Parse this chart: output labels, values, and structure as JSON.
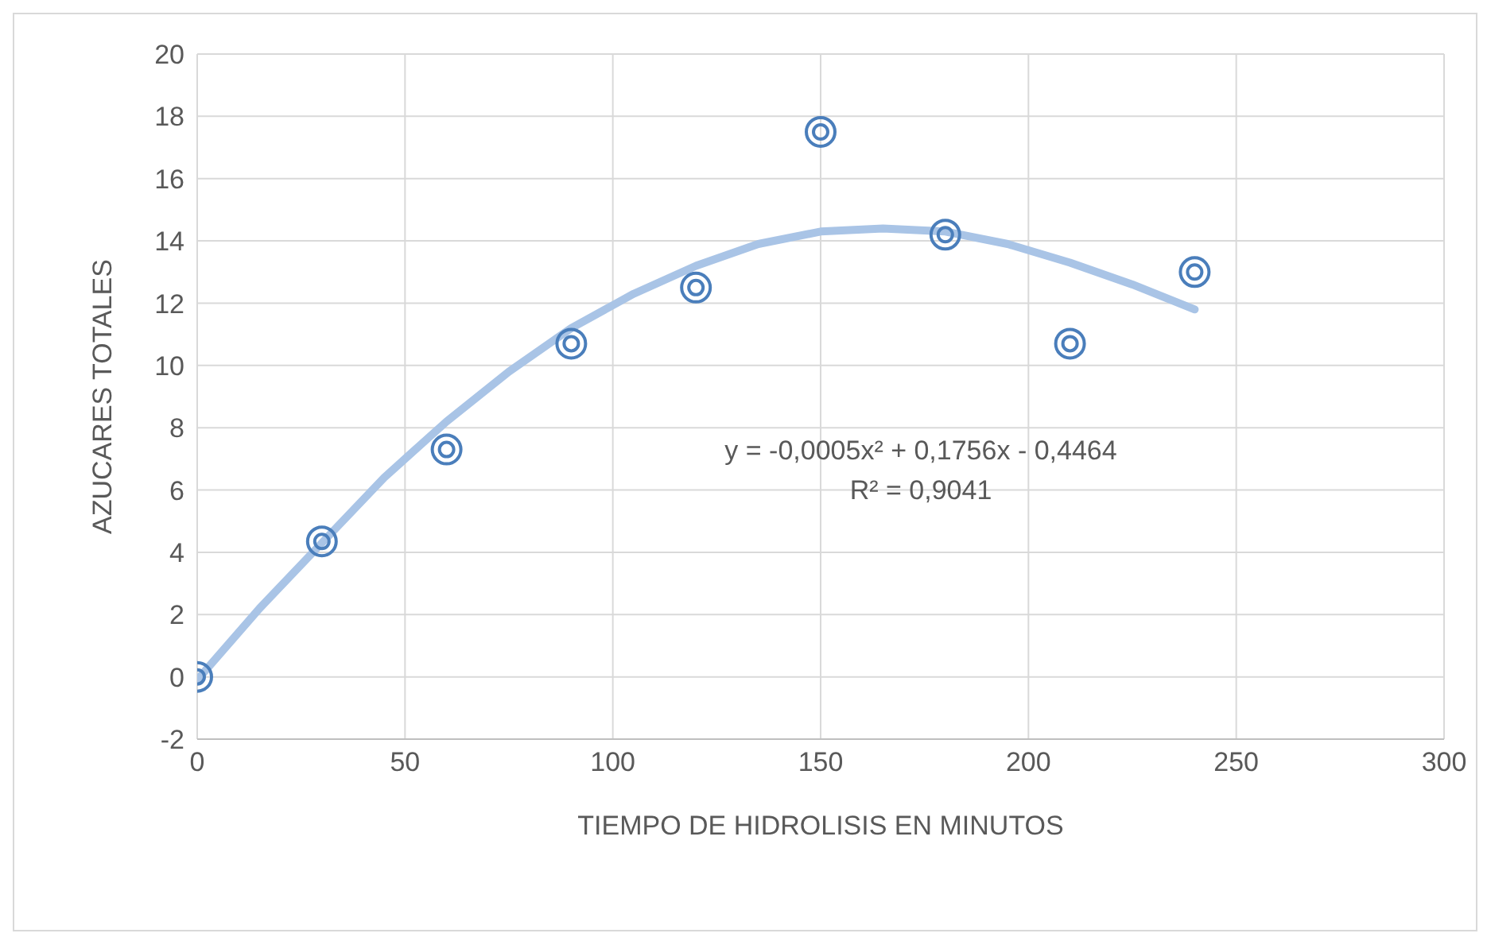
{
  "chart_data": {
    "type": "scatter",
    "xlabel": "TIEMPO DE HIDROLISIS EN MINUTOS",
    "ylabel": "AZUCARES TOTALES",
    "series": [
      {
        "color": "#4a7ebb",
        "marker": "circle",
        "x": [
          0,
          30,
          60,
          90,
          120,
          150,
          180,
          210,
          240
        ],
        "values": [
          0,
          4.35,
          7.3,
          10.7,
          12.5,
          17.5,
          14.2,
          10.7,
          13
        ]
      },
      {
        "type": "line",
        "marker": "none",
        "color": "#a9c4e6",
        "x": [
          0,
          15,
          30,
          45,
          60,
          75,
          90,
          105,
          120,
          135,
          150,
          165,
          180,
          195,
          210,
          225,
          240
        ],
        "values": [
          -0.1,
          2.2,
          4.3,
          6.4,
          8.2,
          9.8,
          11.2,
          12.3,
          13.2,
          13.9,
          14.3,
          14.4,
          14.3,
          13.9,
          13.3,
          12.6,
          11.8
        ]
      }
    ],
    "xlim": [
      0,
      300
    ],
    "xticks": [
      0,
      50,
      100,
      150,
      200,
      250,
      300
    ],
    "ylim": [
      -2,
      20
    ],
    "yticks": [
      -2,
      0,
      2,
      4,
      6,
      8,
      10,
      12,
      14,
      16,
      18,
      20
    ],
    "grid": true,
    "annotations": [
      "y = -0,0005x² + 0,1756x - 0,4464",
      "R² = 0,9041"
    ]
  }
}
